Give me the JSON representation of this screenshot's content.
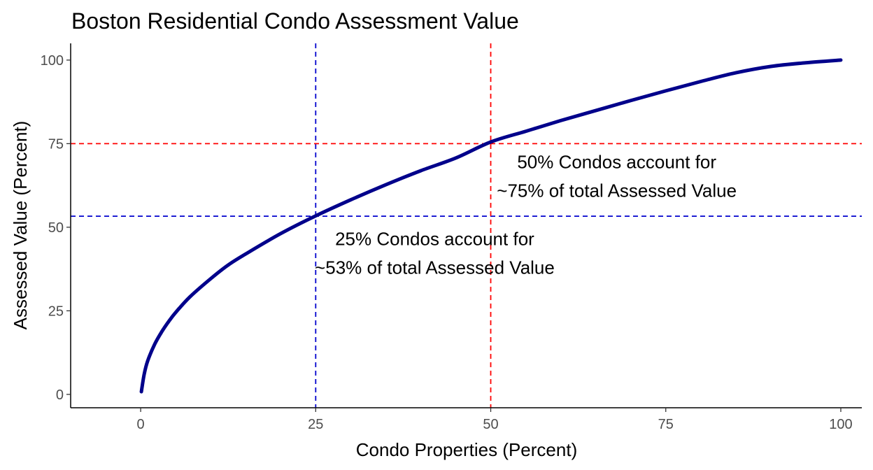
{
  "chart_data": {
    "type": "line",
    "title": "Boston Residential Condo Assessment Value",
    "xlabel": "Condo Properties (Percent)",
    "ylabel": "Assessed Value (Percent)",
    "xlim": [
      -10,
      103
    ],
    "ylim": [
      -4,
      105
    ],
    "xticks": [
      0,
      25,
      50,
      75,
      100
    ],
    "yticks": [
      0,
      25,
      50,
      75,
      100
    ],
    "grid": false,
    "line_color": "#00008b",
    "series": [
      {
        "x": [
          0.1,
          0.5,
          1,
          2,
          3,
          4,
          5,
          7,
          10,
          12.5,
          15,
          20,
          25,
          30,
          35,
          40,
          45,
          50,
          55,
          60,
          65,
          70,
          75,
          80,
          85,
          90,
          95,
          100
        ],
        "values": [
          0.8,
          6,
          10,
          15,
          18.7,
          21.8,
          24.5,
          29.1,
          34.6,
          38.7,
          42,
          48.1,
          53.4,
          58.2,
          62.7,
          66.9,
          70.7,
          75.5,
          78.7,
          81.9,
          84.9,
          87.9,
          90.8,
          93.6,
          96.2,
          98.1,
          99.2,
          100
        ]
      }
    ],
    "reference_lines": [
      {
        "orientation": "vertical",
        "value": 25,
        "color": "#0000cd"
      },
      {
        "orientation": "horizontal",
        "value": 53.3,
        "color": "#0000cd"
      },
      {
        "orientation": "vertical",
        "value": 50,
        "color": "#ff0000"
      },
      {
        "orientation": "horizontal",
        "value": 75,
        "color": "#ff0000"
      }
    ],
    "annotations": [
      {
        "lines": [
          "50% Condos account for",
          "~75% of total Assessed Value"
        ],
        "x": 68,
        "y": 69.5
      },
      {
        "lines": [
          "25% Condos account for",
          "~53% of total Assessed Value"
        ],
        "x": 42,
        "y": 46.5
      }
    ]
  }
}
